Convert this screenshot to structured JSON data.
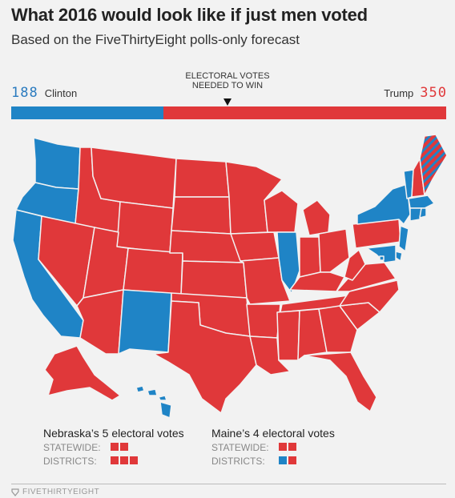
{
  "title": "What 2016 would look like if just men voted",
  "subtitle": "Based on the FiveThirtyEight polls-only forecast",
  "electoral_note": "ELECTORAL VOTES NEEDED TO WIN",
  "clinton": {
    "votes": "188",
    "name": "Clinton",
    "color": "#1f84c6"
  },
  "trump": {
    "votes": "350",
    "name": "Trump",
    "color": "#e0383a"
  },
  "total_votes": 538,
  "needed_to_win": 270,
  "states_won": {
    "clinton": [
      "WA",
      "OR",
      "CA",
      "NM",
      "IL",
      "NY",
      "VT",
      "MA",
      "RI",
      "CT",
      "NJ",
      "DE",
      "MD",
      "DC",
      "HI"
    ],
    "trump": [
      "ID",
      "MT",
      "WY",
      "NV",
      "UT",
      "AZ",
      "CO",
      "ND",
      "SD",
      "NE",
      "KS",
      "OK",
      "TX",
      "MN",
      "IA",
      "MO",
      "AR",
      "LA",
      "WI",
      "MI",
      "IN",
      "OH",
      "KY",
      "TN",
      "MS",
      "AL",
      "GA",
      "FL",
      "SC",
      "NC",
      "VA",
      "WV",
      "PA",
      "NH",
      "ME",
      "AK"
    ]
  },
  "legend": {
    "nebraska": {
      "title": "Nebraska’s 5 electoral votes",
      "statewide_label": "STATEWIDE:",
      "districts_label": "DISTRICTS:",
      "statewide": [
        "rep",
        "rep"
      ],
      "districts": [
        "rep",
        "rep",
        "rep"
      ]
    },
    "maine": {
      "title": "Maine’s 4 electoral votes",
      "statewide_label": "STATEWIDE:",
      "districts_label": "DISTRICTS:",
      "statewide": [
        "rep",
        "rep"
      ],
      "districts": [
        "dem",
        "rep"
      ]
    }
  },
  "footer": "FIVETHIRTYEIGHT"
}
